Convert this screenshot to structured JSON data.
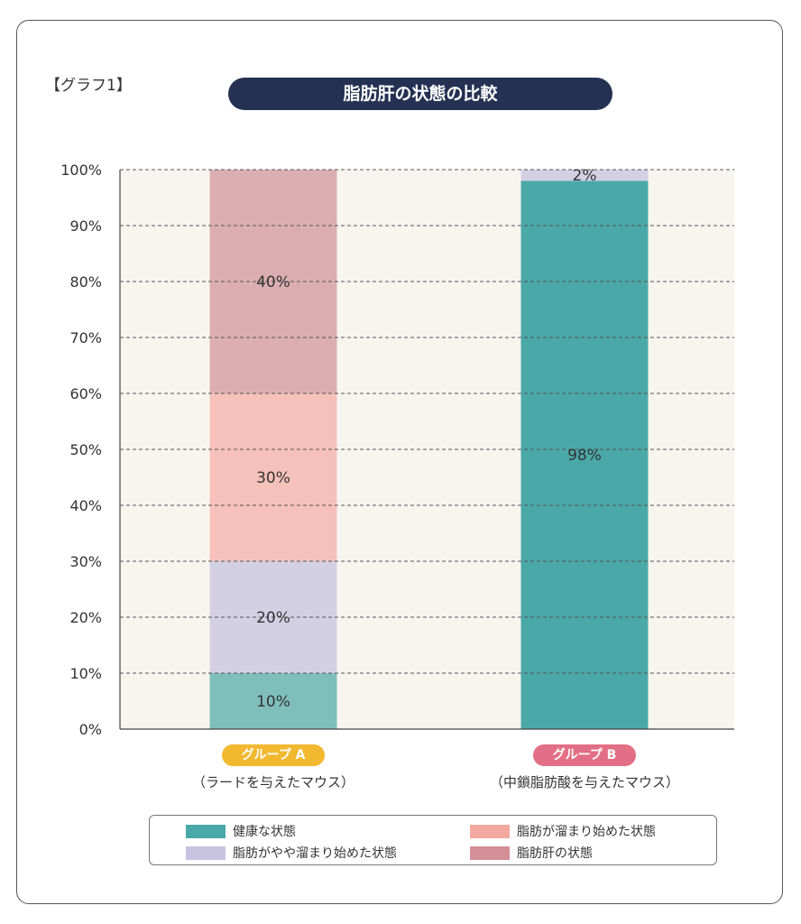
{
  "graph_label": "【グラフ1】",
  "colors": {
    "healthy": "#4BA8A8",
    "healthy_light": "#7FBFBB",
    "slight": "#D3D0E4",
    "slight_legend": "#C7C3E0",
    "starting": "#F5C1BA",
    "starting_legend": "#F3A99F",
    "fatty": "#DCAEB2",
    "fatty_legend": "#D48F97",
    "title_bg": "#253152",
    "badge_a": "#F2B830",
    "badge_b": "#E36F86",
    "plot_bg": "#F8F5EF"
  },
  "groups": [
    {
      "badge": "グループ A",
      "subtitle": "（ラードを与えたマウス）"
    },
    {
      "badge": "グループ B",
      "subtitle": "（中鎖脂肪酸を与えたマウス）"
    }
  ],
  "legend": [
    {
      "label": "健康な状態",
      "color_key": "healthy"
    },
    {
      "label": "脂肪が溜まり始めた状態",
      "color_key": "starting_legend"
    },
    {
      "label": "脂肪がやや溜まり始めた状態",
      "color_key": "slight_legend"
    },
    {
      "label": "脂肪肝の状態",
      "color_key": "fatty_legend"
    }
  ],
  "chart_data": {
    "type": "bar",
    "stacked": true,
    "title": "脂肪肝の状態の比較",
    "categories": [
      "グループ A",
      "グループ B"
    ],
    "ylim": [
      0,
      100
    ],
    "yticks": [
      "0%",
      "10%",
      "20%",
      "30%",
      "40%",
      "50%",
      "60%",
      "70%",
      "80%",
      "90%",
      "100%"
    ],
    "grid": true,
    "series": [
      {
        "name": "健康な状態",
        "values": [
          10,
          98
        ],
        "labels": [
          "10%",
          "98%"
        ]
      },
      {
        "name": "脂肪がやや溜まり始めた状態",
        "values": [
          20,
          2
        ],
        "labels": [
          "20%",
          "2%"
        ]
      },
      {
        "name": "脂肪が溜まり始めた状態",
        "values": [
          30,
          0
        ],
        "labels": [
          "30%",
          ""
        ]
      },
      {
        "name": "脂肪肝の状態",
        "values": [
          40,
          0
        ],
        "labels": [
          "40%",
          ""
        ]
      }
    ]
  }
}
